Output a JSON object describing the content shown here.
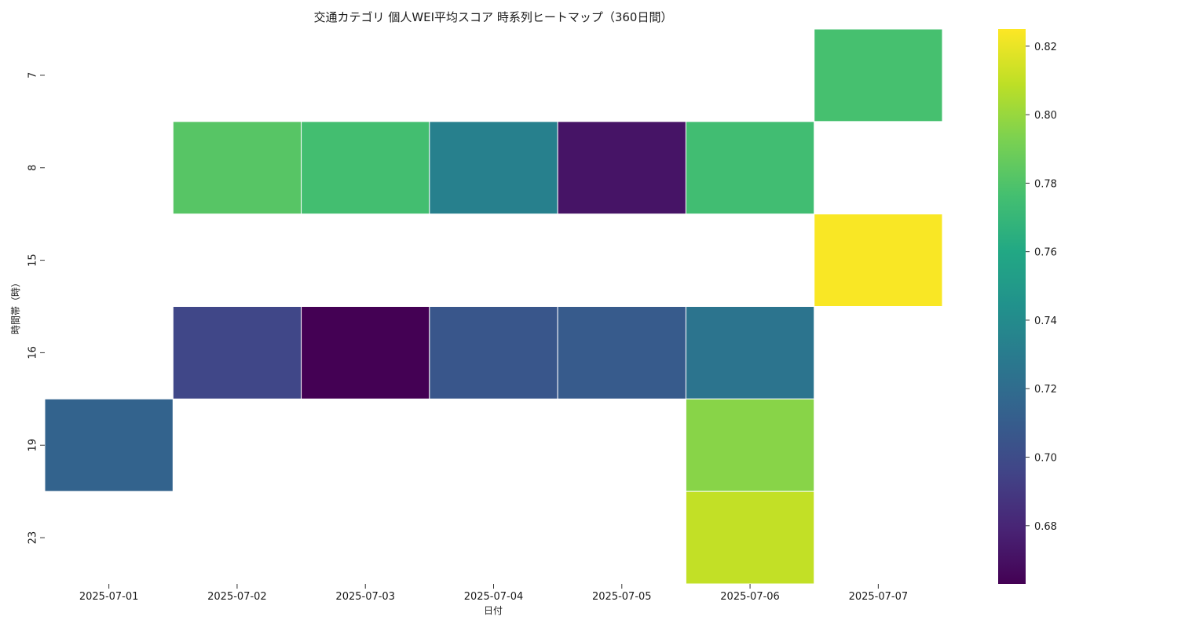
{
  "chart_data": {
    "type": "heatmap",
    "title": "交通カテゴリ 個人WEI平均スコア 時系列ヒートマップ（360日間）",
    "xlabel": "日付",
    "ylabel": "時間帯（時）",
    "x_categories": [
      "2025-07-01",
      "2025-07-02",
      "2025-07-03",
      "2025-07-04",
      "2025-07-05",
      "2025-07-06",
      "2025-07-07"
    ],
    "y_categories": [
      "7",
      "8",
      "15",
      "16",
      "19",
      "23"
    ],
    "values": [
      [
        null,
        null,
        null,
        null,
        null,
        null,
        0.777
      ],
      [
        null,
        0.782,
        0.776,
        0.733,
        0.672,
        0.775,
        null
      ],
      [
        null,
        null,
        null,
        null,
        null,
        null,
        0.824
      ],
      [
        null,
        0.697,
        0.663,
        0.706,
        0.709,
        0.725,
        null
      ],
      [
        0.714,
        null,
        null,
        null,
        null,
        0.796,
        null
      ],
      [
        null,
        null,
        null,
        null,
        null,
        0.81,
        null
      ]
    ],
    "colormap": "viridis",
    "vmin": 0.663,
    "vmax": 0.825,
    "colorbar_ticks": [
      "0.68",
      "0.70",
      "0.72",
      "0.74",
      "0.76",
      "0.78",
      "0.80",
      "0.82"
    ],
    "grid": false
  }
}
